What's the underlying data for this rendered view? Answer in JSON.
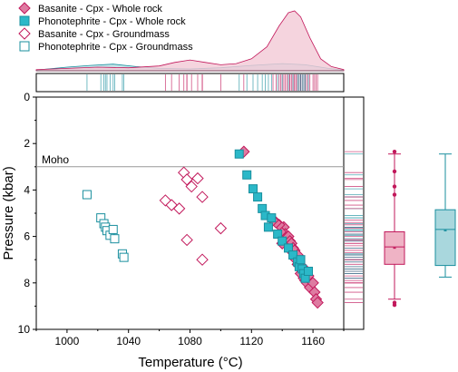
{
  "colors": {
    "basanite": "#c2185b",
    "basanite_fill": "#de7ba1",
    "phono": "#1a8f9e",
    "phono_fill": "#2bb8c8",
    "density_basanite": "#f3c9d6",
    "density_phono": "#b9dfe4",
    "box_basanite_fill": "#efb3c5",
    "box_phono_fill": "#a9d7dd",
    "moho_line": "#999999"
  },
  "chart_data": {
    "type": "scatter",
    "title": "",
    "xlabel": "Temperature (°C)",
    "ylabel": "Pressure (kbar)",
    "xlim": [
      980,
      1180
    ],
    "ylim": [
      10,
      0
    ],
    "y_inverted": true,
    "x_ticks": [
      1000,
      1040,
      1080,
      1120,
      1160
    ],
    "y_ticks": [
      0,
      2,
      4,
      6,
      8,
      10
    ],
    "grid": false,
    "legend_position": "top-left",
    "annotations": [
      {
        "text": "Moho",
        "y": 3.0,
        "style": "horizontal-line"
      }
    ],
    "series": [
      {
        "name": "Basanite - Cpx - Whole rock",
        "marker": "diamond-filled",
        "color": "basanite",
        "points": [
          [
            1115,
            2.35
          ],
          [
            1141,
            5.6
          ],
          [
            1142,
            5.9
          ],
          [
            1143,
            6.1
          ],
          [
            1144,
            6.0
          ],
          [
            1145,
            6.2
          ],
          [
            1145,
            6.4
          ],
          [
            1146,
            6.3
          ],
          [
            1147,
            6.5
          ],
          [
            1147,
            6.7
          ],
          [
            1148,
            6.6
          ],
          [
            1148,
            6.9
          ],
          [
            1149,
            7.0
          ],
          [
            1150,
            6.8
          ],
          [
            1150,
            7.2
          ],
          [
            1151,
            7.1
          ],
          [
            1152,
            7.4
          ],
          [
            1152,
            7.6
          ],
          [
            1153,
            7.3
          ],
          [
            1154,
            7.8
          ],
          [
            1155,
            7.5
          ],
          [
            1155,
            7.9
          ],
          [
            1156,
            8.0
          ],
          [
            1157,
            7.7
          ],
          [
            1158,
            8.2
          ],
          [
            1160,
            8.0
          ],
          [
            1161,
            8.4
          ],
          [
            1162,
            8.7
          ],
          [
            1163,
            8.85
          ],
          [
            1139,
            5.8
          ],
          [
            1140,
            6.3
          ],
          [
            1138,
            5.5
          ],
          [
            1136,
            5.4
          ],
          [
            1134,
            5.3
          ]
        ]
      },
      {
        "name": "Phonotephrite - Cpx - Whole rock",
        "marker": "square-filled",
        "color": "phono",
        "points": [
          [
            1112,
            2.45
          ],
          [
            1117,
            3.35
          ],
          [
            1121,
            3.95
          ],
          [
            1124,
            4.3
          ],
          [
            1127,
            4.8
          ],
          [
            1129,
            5.1
          ],
          [
            1131,
            5.6
          ],
          [
            1133,
            5.2
          ],
          [
            1137,
            5.9
          ],
          [
            1140,
            6.2
          ],
          [
            1144,
            6.5
          ],
          [
            1147,
            6.8
          ],
          [
            1150,
            7.1
          ],
          [
            1151,
            7.3
          ],
          [
            1152,
            7.0
          ],
          [
            1153,
            7.4
          ],
          [
            1154,
            7.6
          ],
          [
            1155,
            7.8
          ],
          [
            1157,
            7.5
          ]
        ]
      },
      {
        "name": "Basanite - Cpx - Groundmass",
        "marker": "diamond-open",
        "color": "basanite",
        "points": [
          [
            1064,
            4.45
          ],
          [
            1068,
            4.65
          ],
          [
            1073,
            4.8
          ],
          [
            1076,
            3.25
          ],
          [
            1078,
            3.55
          ],
          [
            1081,
            3.85
          ],
          [
            1085,
            3.5
          ],
          [
            1088,
            4.3
          ],
          [
            1078,
            6.15
          ],
          [
            1088,
            7.0
          ],
          [
            1100,
            5.65
          ]
        ]
      },
      {
        "name": "Phonotephrite - Cpx - Groundmass",
        "marker": "square-open",
        "color": "phono",
        "points": [
          [
            1013,
            4.2
          ],
          [
            1022,
            5.2
          ],
          [
            1024,
            5.45
          ],
          [
            1025,
            5.6
          ],
          [
            1026,
            5.75
          ],
          [
            1028,
            5.95
          ],
          [
            1030,
            5.7
          ],
          [
            1031,
            6.1
          ],
          [
            1036,
            6.75
          ],
          [
            1037,
            6.9
          ]
        ]
      }
    ],
    "top_density": {
      "basanite_curve": [
        [
          980,
          0.02
        ],
        [
          1000,
          0.04
        ],
        [
          1020,
          0.06
        ],
        [
          1040,
          0.05
        ],
        [
          1060,
          0.08
        ],
        [
          1070,
          0.14
        ],
        [
          1080,
          0.18
        ],
        [
          1090,
          0.14
        ],
        [
          1100,
          0.1
        ],
        [
          1110,
          0.12
        ],
        [
          1120,
          0.2
        ],
        [
          1130,
          0.4
        ],
        [
          1138,
          0.75
        ],
        [
          1144,
          0.97
        ],
        [
          1148,
          1.0
        ],
        [
          1152,
          0.9
        ],
        [
          1158,
          0.55
        ],
        [
          1165,
          0.2
        ],
        [
          1172,
          0.07
        ],
        [
          1180,
          0.02
        ]
      ],
      "phono_curve": [
        [
          980,
          0.01
        ],
        [
          1000,
          0.06
        ],
        [
          1015,
          0.09
        ],
        [
          1030,
          0.11
        ],
        [
          1045,
          0.07
        ],
        [
          1060,
          0.04
        ],
        [
          1080,
          0.03
        ],
        [
          1100,
          0.05
        ],
        [
          1120,
          0.09
        ],
        [
          1140,
          0.12
        ],
        [
          1155,
          0.1
        ],
        [
          1170,
          0.04
        ],
        [
          1180,
          0.01
        ]
      ]
    },
    "boxplots": [
      {
        "series": "Basanite",
        "color": "basanite",
        "whisker_low": 2.45,
        "q1": 5.8,
        "median": 6.45,
        "mean": 6.5,
        "q3": 7.2,
        "whisker_high": 8.7,
        "outliers": [
          2.35,
          3.2,
          3.85,
          4.2,
          8.85,
          8.95
        ]
      },
      {
        "series": "Phonotephrite",
        "color": "phono",
        "whisker_low": 2.45,
        "q1": 4.85,
        "median": 5.7,
        "mean": 5.75,
        "q3": 7.25,
        "whisker_high": 7.75,
        "outliers": []
      }
    ]
  }
}
